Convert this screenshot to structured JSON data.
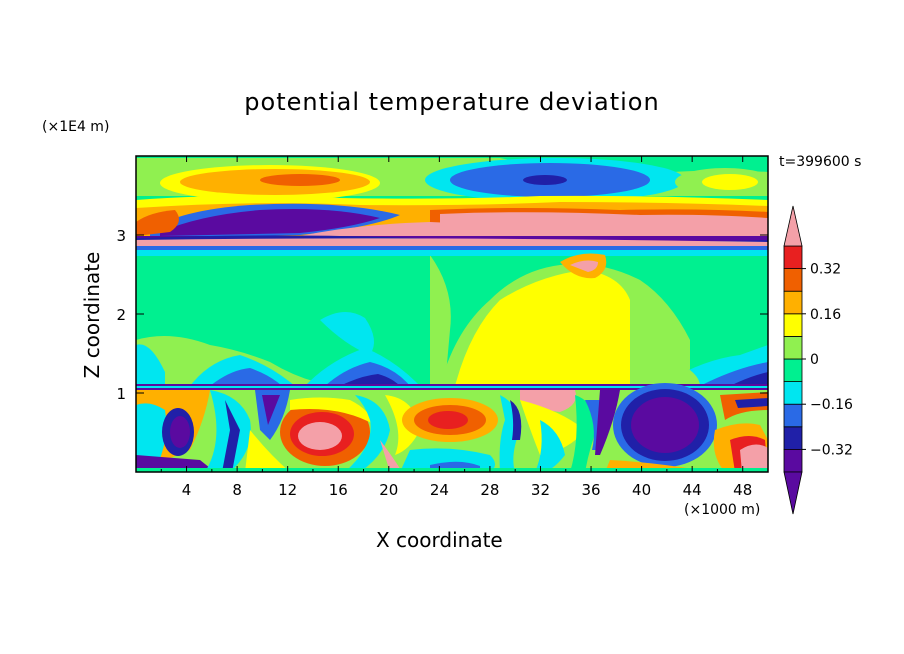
{
  "chart_data": {
    "type": "heatmap",
    "title": "potential temperature deviation",
    "xlabel": "X coordinate",
    "ylabel": "Z coordinate",
    "x_unit": "(×1000 m)",
    "z_unit": "(×1E4 m)",
    "time_label": "t=399600 s",
    "xlim": [
      0,
      50
    ],
    "ylim": [
      0,
      4
    ],
    "x_ticks": [
      4,
      8,
      12,
      16,
      20,
      24,
      28,
      32,
      36,
      40,
      44,
      48
    ],
    "y_ticks": [
      1,
      2,
      3
    ],
    "colorbar": {
      "levels": [
        -0.4,
        -0.32,
        -0.24,
        -0.16,
        -0.08,
        0,
        0.08,
        0.16,
        0.24,
        0.32,
        0.4
      ],
      "labels": [
        "0.32",
        "0.16",
        "0",
        "−0.16",
        "−0.32"
      ],
      "colors": [
        "#5a0aa0",
        "#2020a8",
        "#2a6ae6",
        "#00e6f0",
        "#00f090",
        "#90f050",
        "#ffff00",
        "#ffb000",
        "#f06000",
        "#e82020",
        "#f4a0a8"
      ],
      "extend": "both"
    }
  }
}
